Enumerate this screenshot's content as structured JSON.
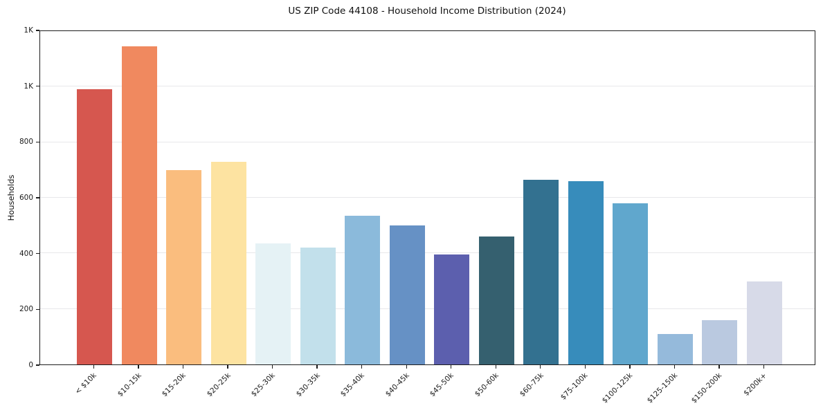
{
  "chart_data": {
    "type": "bar",
    "title": "US ZIP Code 44108 - Household Income Distribution (2024)",
    "xlabel": "",
    "ylabel": "Households",
    "categories": [
      "< $10k",
      "$10-15k",
      "$15-20k",
      "$20-25k",
      "$25-30k",
      "$30-35k",
      "$35-40k",
      "$40-45k",
      "$45-50k",
      "$50-60k",
      "$60-75k",
      "$75-100k",
      "$100-125k",
      "$125-150k",
      "$150-200k",
      "$200k+"
    ],
    "values": [
      990,
      1145,
      700,
      730,
      435,
      420,
      535,
      500,
      395,
      460,
      665,
      660,
      580,
      110,
      160,
      300
    ],
    "bar_colors": [
      "#d6574f",
      "#f0895f",
      "#fabd7e",
      "#fde3a1",
      "#e5f2f5",
      "#c2e0eb",
      "#8bbadb",
      "#6691c5",
      "#5c5fae",
      "#35606f",
      "#337190",
      "#378cbb",
      "#60a7cd",
      "#95badb",
      "#bac9e0",
      "#d7dae8"
    ],
    "ylim": [
      0,
      1200
    ],
    "yticks": {
      "values": [
        0,
        200,
        400,
        600,
        800,
        1000,
        1200
      ],
      "labels": [
        "0",
        "200",
        "400",
        "600",
        "800",
        "1K",
        "1K"
      ]
    },
    "grid": "horizontal-light",
    "legend": false,
    "grid_color": "#e8e8ea",
    "spine_color": "#1c1c1c",
    "text_color": "#1a1a1a",
    "background_color": "#ffffff"
  }
}
